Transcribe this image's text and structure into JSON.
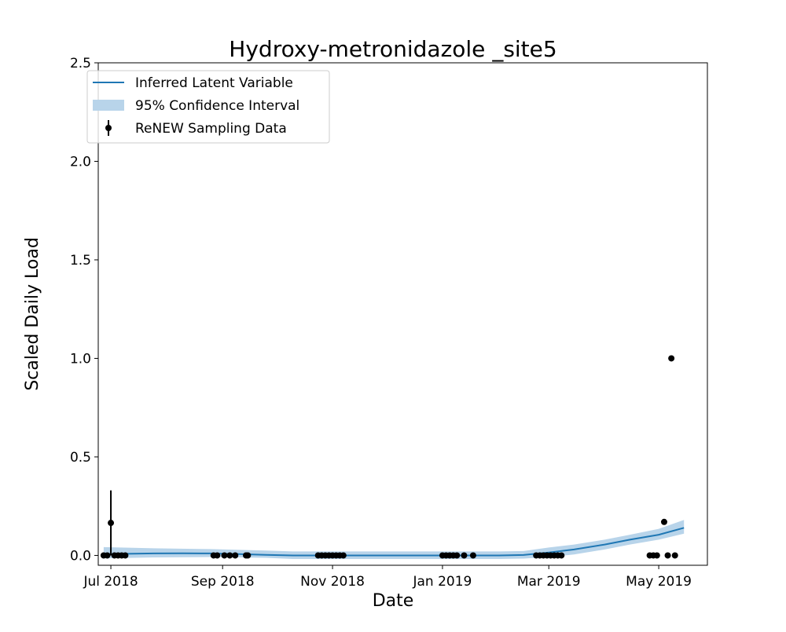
{
  "chart_data": {
    "type": "line",
    "title": "Hydroxy-metronidazole _site5",
    "xlabel": "Date",
    "ylabel": "Scaled Daily Load",
    "x_ticks": [
      "Jul 2018",
      "Sep 2018",
      "Nov 2018",
      "Jan 2019",
      "Mar 2019",
      "May 2019"
    ],
    "x_tick_dates": [
      "2018-07-01",
      "2018-09-01",
      "2018-11-01",
      "2019-01-01",
      "2019-03-01",
      "2019-05-01"
    ],
    "y_ticks": [
      "0.0",
      "0.5",
      "1.0",
      "1.5",
      "2.0",
      "2.5"
    ],
    "y_tick_values": [
      0,
      0.5,
      1.0,
      1.5,
      2.0,
      2.5
    ],
    "xlim": [
      "2018-06-24",
      "2019-05-28"
    ],
    "ylim": [
      -0.05,
      2.5
    ],
    "grid": false,
    "legend_position": "top-left",
    "legend": [
      {
        "label": "Inferred Latent Variable",
        "kind": "line"
      },
      {
        "label": "95% Confidence Interval",
        "kind": "band"
      },
      {
        "label": "ReNEW Sampling Data",
        "kind": "errorbar"
      }
    ],
    "colors": {
      "line": "#1f77b4",
      "band": "#b8d4ea",
      "points": "#000000"
    },
    "series": [
      {
        "name": "Inferred Latent Variable",
        "kind": "line",
        "points": [
          [
            "2018-06-27",
            0.007
          ],
          [
            "2018-07-10",
            0.008
          ],
          [
            "2018-07-25",
            0.01
          ],
          [
            "2018-08-10",
            0.011
          ],
          [
            "2018-08-25",
            0.01
          ],
          [
            "2018-09-10",
            0.007
          ],
          [
            "2018-09-25",
            0.003
          ],
          [
            "2018-10-10",
            0.0
          ],
          [
            "2018-11-01",
            0.0
          ],
          [
            "2018-12-01",
            0.0
          ],
          [
            "2019-01-01",
            0.0
          ],
          [
            "2019-02-01",
            0.0
          ],
          [
            "2019-02-15",
            0.002
          ],
          [
            "2019-03-01",
            0.015
          ],
          [
            "2019-03-15",
            0.03
          ],
          [
            "2019-04-01",
            0.055
          ],
          [
            "2019-04-15",
            0.08
          ],
          [
            "2019-05-01",
            0.105
          ],
          [
            "2019-05-15",
            0.14
          ]
        ]
      },
      {
        "name": "95% Confidence Interval",
        "kind": "band",
        "points": [
          [
            "2018-06-27",
            -0.015,
            0.042
          ],
          [
            "2018-07-25",
            -0.01,
            0.036
          ],
          [
            "2018-08-25",
            -0.008,
            0.032
          ],
          [
            "2018-09-25",
            -0.012,
            0.025
          ],
          [
            "2018-10-10",
            -0.018,
            0.02
          ],
          [
            "2018-11-01",
            -0.018,
            0.02
          ],
          [
            "2018-12-01",
            -0.018,
            0.02
          ],
          [
            "2019-01-01",
            -0.018,
            0.02
          ],
          [
            "2019-02-01",
            -0.018,
            0.02
          ],
          [
            "2019-02-15",
            -0.016,
            0.022
          ],
          [
            "2019-03-01",
            -0.008,
            0.04
          ],
          [
            "2019-03-15",
            0.005,
            0.055
          ],
          [
            "2019-04-01",
            0.03,
            0.08
          ],
          [
            "2019-04-15",
            0.055,
            0.105
          ],
          [
            "2019-05-01",
            0.08,
            0.135
          ],
          [
            "2019-05-15",
            0.11,
            0.18
          ]
        ]
      },
      {
        "name": "ReNEW Sampling Data",
        "kind": "scatter",
        "points": [
          [
            "2018-06-27",
            0.0,
            0.0
          ],
          [
            "2018-06-29",
            0.0,
            0.0
          ],
          [
            "2018-07-01",
            0.165,
            0.165
          ],
          [
            "2018-07-03",
            0.0,
            0.0
          ],
          [
            "2018-07-05",
            0.0,
            0.0
          ],
          [
            "2018-07-07",
            0.0,
            0.0
          ],
          [
            "2018-07-09",
            0.0,
            0.0
          ],
          [
            "2018-08-27",
            0.0,
            0.0
          ],
          [
            "2018-08-29",
            0.0,
            0.0
          ],
          [
            "2018-09-02",
            0.0,
            0.0
          ],
          [
            "2018-09-05",
            0.0,
            0.0
          ],
          [
            "2018-09-08",
            0.0,
            0.0
          ],
          [
            "2018-09-14",
            0.0,
            0.0
          ],
          [
            "2018-09-15",
            0.0,
            0.0
          ],
          [
            "2018-10-24",
            0.0,
            0.0
          ],
          [
            "2018-10-26",
            0.0,
            0.0
          ],
          [
            "2018-10-28",
            0.0,
            0.0
          ],
          [
            "2018-10-30",
            0.0,
            0.0
          ],
          [
            "2018-11-01",
            0.0,
            0.0
          ],
          [
            "2018-11-03",
            0.0,
            0.0
          ],
          [
            "2018-11-05",
            0.0,
            0.0
          ],
          [
            "2018-11-07",
            0.0,
            0.0
          ],
          [
            "2019-01-01",
            0.0,
            0.0
          ],
          [
            "2019-01-03",
            0.0,
            0.0
          ],
          [
            "2019-01-05",
            0.0,
            0.0
          ],
          [
            "2019-01-07",
            0.0,
            0.0
          ],
          [
            "2019-01-09",
            0.0,
            0.0
          ],
          [
            "2019-01-13",
            0.0,
            0.0
          ],
          [
            "2019-01-18",
            0.0,
            0.0
          ],
          [
            "2019-02-22",
            0.0,
            0.0
          ],
          [
            "2019-02-24",
            0.0,
            0.0
          ],
          [
            "2019-02-26",
            0.0,
            0.0
          ],
          [
            "2019-02-28",
            0.0,
            0.0
          ],
          [
            "2019-03-02",
            0.0,
            0.0
          ],
          [
            "2019-03-04",
            0.0,
            0.0
          ],
          [
            "2019-03-06",
            0.0,
            0.0
          ],
          [
            "2019-03-08",
            0.0,
            0.0
          ],
          [
            "2019-04-26",
            0.0,
            0.0
          ],
          [
            "2019-04-28",
            0.0,
            0.0
          ],
          [
            "2019-04-30",
            0.0,
            0.0
          ],
          [
            "2019-05-04",
            0.17,
            0.0
          ],
          [
            "2019-05-06",
            0.0,
            0.0
          ],
          [
            "2019-05-08",
            1.0,
            0.0
          ],
          [
            "2019-05-10",
            0.0,
            0.0
          ]
        ]
      }
    ]
  }
}
